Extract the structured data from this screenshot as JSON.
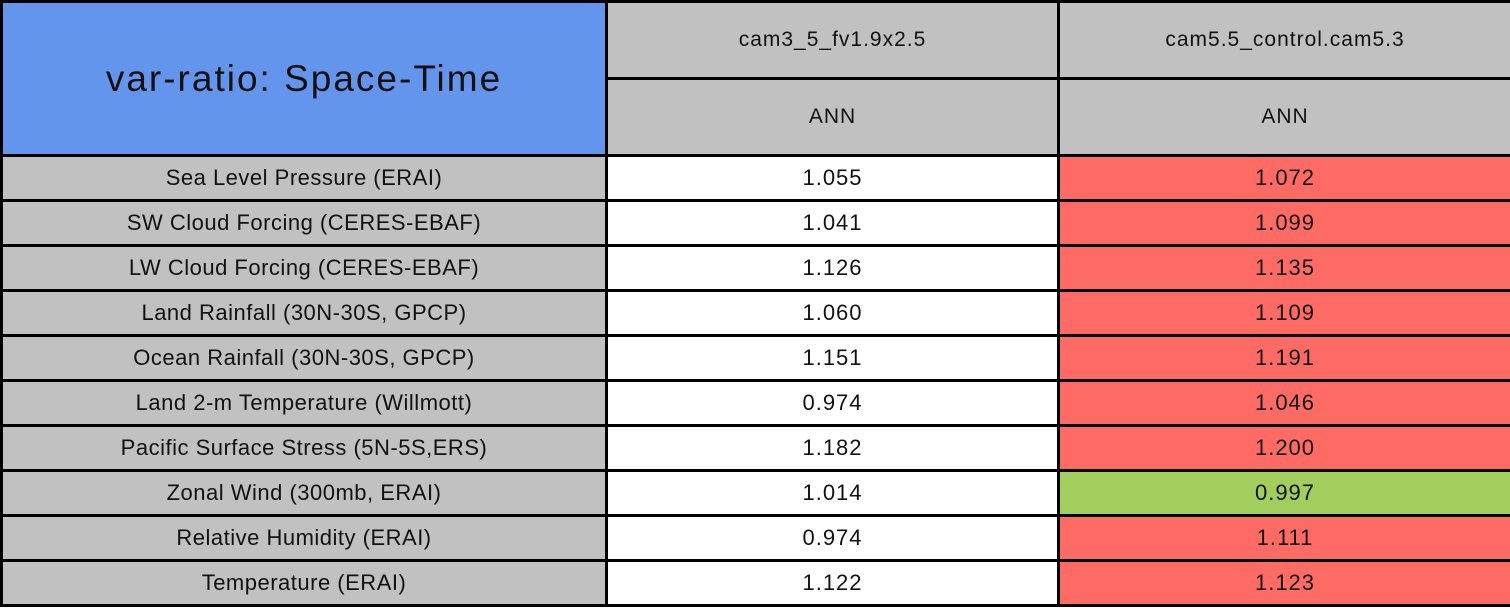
{
  "chart_data": {
    "type": "table",
    "title": "var-ratio: Space-Time",
    "columns": [
      "cam3_5_fv1.9x2.5",
      "cam5.5_control.cam5.3"
    ],
    "subcolumns": [
      "ANN",
      "ANN"
    ],
    "rows": [
      {
        "label": "Sea Level Pressure (ERAI)",
        "values": [
          "1.055",
          "1.072"
        ],
        "highlight": "worse"
      },
      {
        "label": "SW Cloud Forcing (CERES-EBAF)",
        "values": [
          "1.041",
          "1.099"
        ],
        "highlight": "worse"
      },
      {
        "label": "LW Cloud Forcing (CERES-EBAF)",
        "values": [
          "1.126",
          "1.135"
        ],
        "highlight": "worse"
      },
      {
        "label": "Land Rainfall (30N-30S, GPCP)",
        "values": [
          "1.060",
          "1.109"
        ],
        "highlight": "worse"
      },
      {
        "label": "Ocean Rainfall (30N-30S, GPCP)",
        "values": [
          "1.151",
          "1.191"
        ],
        "highlight": "worse"
      },
      {
        "label": "Land 2-m Temperature (Willmott)",
        "values": [
          "0.974",
          "1.046"
        ],
        "highlight": "worse"
      },
      {
        "label": "Pacific Surface Stress (5N-5S,ERS)",
        "values": [
          "1.182",
          "1.200"
        ],
        "highlight": "worse"
      },
      {
        "label": "Zonal Wind (300mb, ERAI)",
        "values": [
          "1.014",
          "0.997"
        ],
        "highlight": "better"
      },
      {
        "label": "Relative Humidity (ERAI)",
        "values": [
          "0.974",
          "1.111"
        ],
        "highlight": "worse"
      },
      {
        "label": "Temperature (ERAI)",
        "values": [
          "1.122",
          "1.123"
        ],
        "highlight": "worse"
      }
    ],
    "series": [
      {
        "name": "cam3_5_fv1.9x2.5",
        "values": [
          1.055,
          1.041,
          1.126,
          1.06,
          1.151,
          0.974,
          1.182,
          1.014,
          0.974,
          1.122
        ]
      },
      {
        "name": "cam5.5_control.cam5.3",
        "values": [
          1.072,
          1.099,
          1.135,
          1.109,
          1.191,
          1.046,
          1.2,
          0.997,
          1.111,
          1.123
        ]
      }
    ],
    "legend_note": "highlight worse=red, better=green"
  },
  "colors": {
    "title_bg": "#6495ED",
    "header_bg": "#C1C1C1",
    "label_bg": "#C1C1C1",
    "cell_bg": "#FFFFFF",
    "worse_bg": "#FD6B64",
    "better_bg": "#A2CE5E",
    "border": "#000000",
    "text": "#111111"
  }
}
